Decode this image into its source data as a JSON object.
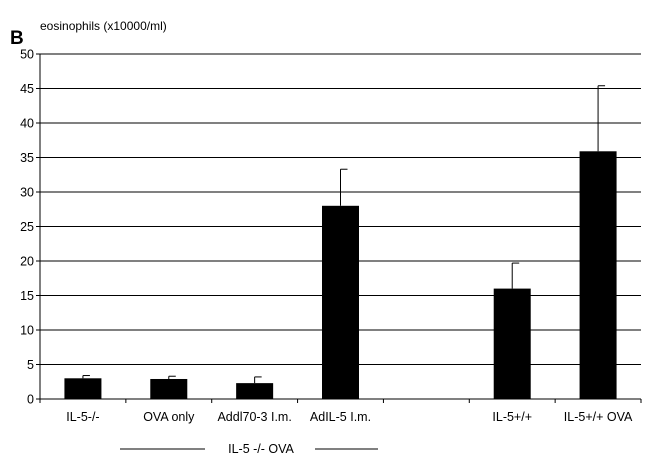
{
  "panel_letter": "B",
  "chart_data": {
    "type": "bar",
    "ylabel": "eosinophils (x10000/ml)",
    "xlabel": "",
    "ylim": [
      0,
      50
    ],
    "yticks": [
      0,
      5,
      10,
      15,
      20,
      25,
      30,
      35,
      40,
      45,
      50
    ],
    "grid": true,
    "categories": [
      "IL-5-/-",
      "OVA only",
      "Addl70-3 I.m.",
      "AdIL-5 I.m.",
      "",
      "IL-5+/+",
      "IL-5+/+ OVA"
    ],
    "values": [
      3.0,
      2.9,
      2.3,
      28.0,
      null,
      16.0,
      35.9
    ],
    "errors": [
      0.4,
      0.4,
      0.9,
      5.3,
      null,
      3.7,
      9.5
    ],
    "bar_color": "#000000",
    "group_label": "IL-5 -/- OVA"
  }
}
